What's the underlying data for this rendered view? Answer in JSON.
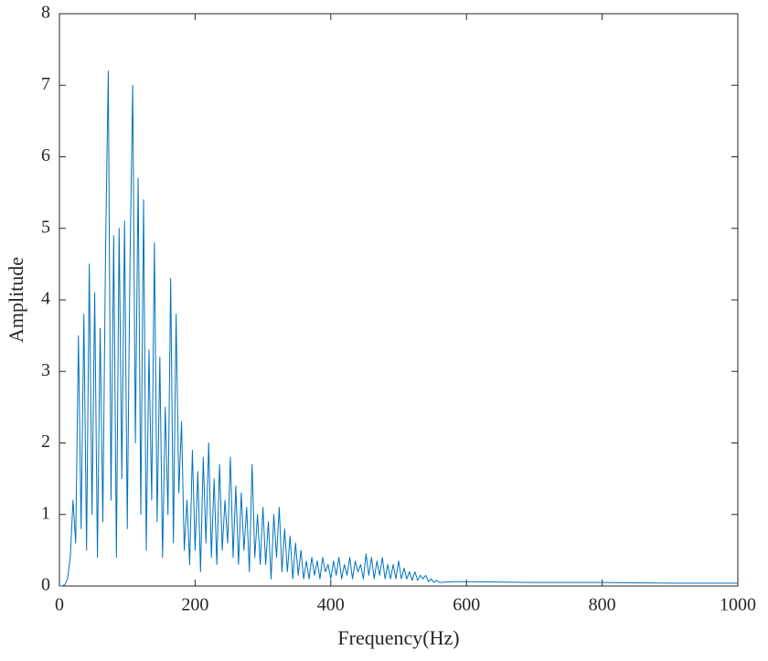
{
  "chart_data": {
    "type": "line",
    "xlabel": "Frequency(Hz)",
    "ylabel": "Amplitude",
    "color": "#0072bd",
    "xlim": [
      0,
      1000
    ],
    "xticks": [
      0,
      200,
      400,
      600,
      800,
      1000
    ],
    "ylim": [
      0,
      8
    ],
    "yticks": [
      0,
      1,
      2,
      3,
      4,
      5,
      6,
      7,
      8
    ],
    "grid": false,
    "x": [
      0,
      4,
      8,
      12,
      16,
      20,
      24,
      28,
      32,
      36,
      40,
      44,
      48,
      52,
      56,
      60,
      64,
      68,
      72,
      76,
      80,
      84,
      88,
      92,
      96,
      100,
      104,
      108,
      112,
      116,
      120,
      124,
      128,
      132,
      136,
      140,
      144,
      148,
      152,
      156,
      160,
      164,
      168,
      172,
      176,
      180,
      184,
      188,
      192,
      196,
      200,
      204,
      208,
      212,
      216,
      220,
      224,
      228,
      232,
      236,
      240,
      244,
      248,
      252,
      256,
      260,
      264,
      268,
      272,
      276,
      280,
      284,
      288,
      292,
      296,
      300,
      304,
      308,
      312,
      316,
      320,
      324,
      328,
      332,
      336,
      340,
      344,
      348,
      352,
      356,
      360,
      364,
      368,
      372,
      376,
      380,
      384,
      388,
      392,
      396,
      400,
      404,
      408,
      412,
      416,
      420,
      424,
      428,
      432,
      436,
      440,
      444,
      448,
      452,
      456,
      460,
      464,
      468,
      472,
      476,
      480,
      484,
      488,
      492,
      496,
      500,
      504,
      508,
      512,
      516,
      520,
      524,
      528,
      532,
      536,
      540,
      544,
      548,
      552,
      556,
      560,
      580,
      600,
      700,
      800,
      900,
      1000
    ],
    "values": [
      0,
      0,
      0.02,
      0.1,
      0.4,
      1.2,
      0.6,
      3.5,
      0.8,
      3.8,
      0.5,
      4.5,
      1.0,
      4.1,
      0.4,
      3.6,
      0.9,
      4.7,
      7.2,
      1.2,
      4.9,
      0.4,
      5.0,
      1.5,
      5.1,
      0.8,
      4.5,
      7.0,
      2.0,
      5.7,
      1.0,
      5.4,
      0.5,
      3.3,
      1.2,
      4.8,
      0.9,
      3.2,
      0.4,
      2.5,
      1.0,
      4.3,
      0.6,
      3.8,
      1.3,
      2.3,
      0.5,
      1.2,
      0.3,
      1.9,
      0.5,
      1.6,
      0.2,
      1.8,
      0.6,
      2.0,
      0.4,
      1.5,
      0.3,
      1.7,
      0.5,
      1.2,
      0.6,
      1.8,
      0.4,
      1.4,
      0.3,
      1.3,
      0.5,
      1.1,
      0.2,
      1.7,
      0.4,
      1.0,
      0.3,
      1.1,
      0.3,
      0.9,
      0.1,
      1.0,
      0.4,
      1.1,
      0.2,
      0.8,
      0.2,
      0.7,
      0.1,
      0.6,
      0.15,
      0.5,
      0.1,
      0.35,
      0.1,
      0.4,
      0.15,
      0.35,
      0.1,
      0.4,
      0.2,
      0.3,
      0.1,
      0.35,
      0.15,
      0.4,
      0.1,
      0.3,
      0.15,
      0.4,
      0.1,
      0.35,
      0.2,
      0.3,
      0.1,
      0.45,
      0.15,
      0.4,
      0.1,
      0.35,
      0.15,
      0.4,
      0.1,
      0.3,
      0.1,
      0.3,
      0.1,
      0.35,
      0.1,
      0.25,
      0.1,
      0.2,
      0.08,
      0.2,
      0.08,
      0.15,
      0.1,
      0.15,
      0.06,
      0.1,
      0.05,
      0.08,
      0.05,
      0.06,
      0.06,
      0.05,
      0.05,
      0.04,
      0.04
    ]
  }
}
